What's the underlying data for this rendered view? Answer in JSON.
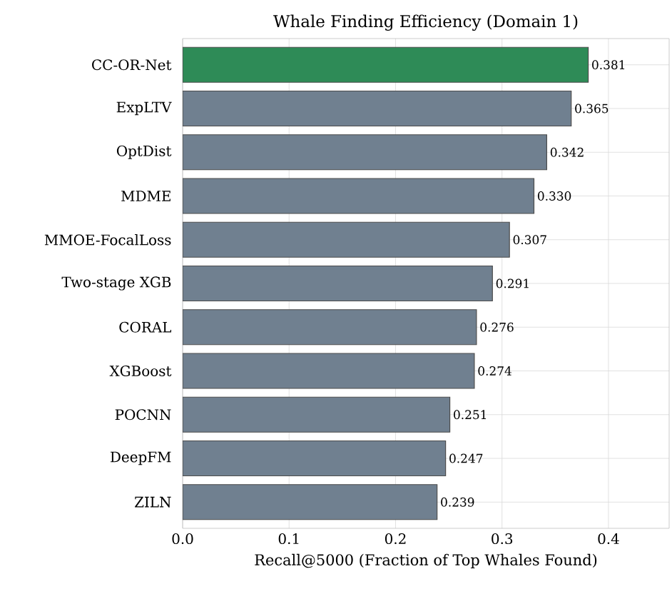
{
  "chart_data": {
    "type": "bar",
    "orientation": "horizontal",
    "title": "Whale Finding Efficiency (Domain 1)",
    "xlabel": "Recall@5000 (Fraction of Top Whales Found)",
    "categories": [
      "CC-OR-Net",
      "ExpLTV",
      "OptDist",
      "MDME",
      "MMOE-FocalLoss",
      "Two-stage XGB",
      "CORAL",
      "XGBoost",
      "POCNN",
      "DeepFM",
      "ZILN"
    ],
    "values": [
      0.381,
      0.365,
      0.342,
      0.33,
      0.307,
      0.291,
      0.276,
      0.274,
      0.251,
      0.247,
      0.239
    ],
    "value_labels": [
      "0.381",
      "0.365",
      "0.342",
      "0.330",
      "0.307",
      "0.291",
      "0.276",
      "0.274",
      "0.251",
      "0.247",
      "0.239"
    ],
    "colors": [
      "#2e8b57",
      "#708090",
      "#708090",
      "#708090",
      "#708090",
      "#708090",
      "#708090",
      "#708090",
      "#708090",
      "#708090",
      "#708090"
    ],
    "xlim": [
      0,
      0.457
    ],
    "xticks": [
      {
        "value": 0,
        "label": "0.0"
      },
      {
        "value": 0.1,
        "label": "0.1"
      },
      {
        "value": 0.2,
        "label": "0.2"
      },
      {
        "value": 0.3,
        "label": "0.3"
      },
      {
        "value": 0.4,
        "label": "0.4"
      }
    ],
    "grid": true
  }
}
